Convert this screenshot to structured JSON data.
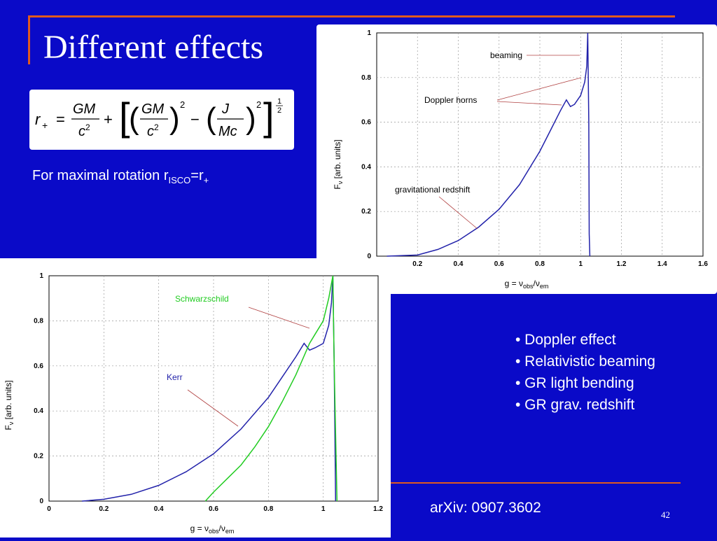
{
  "slide": {
    "title": "Different effects",
    "formula_text": "r+ = GM/c² + [ (GM/c²)² − (J/Mc)² ]^(1/2)",
    "note": {
      "prefix": "For maximal rotation r",
      "sub": "ISCO",
      "mid": "=r",
      "sup": "+"
    },
    "bullets": [
      "• Doppler effect",
      "• Relativistic beaming",
      "• GR light bending",
      "• GR grav. redshift"
    ],
    "reference": "arXiv: 0907.3602",
    "page_number": "42",
    "colors": {
      "background": "#0a0ac8",
      "rule": "#e05a1e",
      "kerr": "#2222aa",
      "schwarzschild": "#22cc22",
      "arrow": "#b04040"
    }
  },
  "chart_data": [
    {
      "type": "line",
      "xlim": [
        0,
        1.6
      ],
      "ylim": [
        0,
        1
      ],
      "xticks": [
        "0.2",
        "0.4",
        "0.6",
        "0.8",
        "1",
        "1.2",
        "1.4",
        "1.6"
      ],
      "yticks": [
        "0",
        "0.2",
        "0.4",
        "0.6",
        "0.8",
        "1"
      ],
      "xlabel": "g = ν_obs/ν_em",
      "ylabel": "F_ν [arb. units]",
      "grid": true,
      "series": [
        {
          "x": [
            0.05,
            0.2,
            0.3,
            0.4,
            0.5,
            0.6,
            0.7,
            0.8,
            0.85,
            0.9,
            0.93,
            0.95,
            0.97,
            1.0,
            1.02,
            1.03,
            1.035,
            1.04,
            1.042,
            1.045
          ],
          "y": [
            0,
            0.005,
            0.03,
            0.07,
            0.13,
            0.21,
            0.32,
            0.47,
            0.56,
            0.65,
            0.7,
            0.67,
            0.68,
            0.72,
            0.78,
            0.85,
            1.0,
            0.6,
            0.1,
            0
          ]
        }
      ],
      "annotations": [
        "beaming",
        "Doppler horns",
        "gravitational redshift"
      ]
    },
    {
      "type": "line",
      "xlim": [
        0,
        1.2
      ],
      "ylim": [
        0,
        1
      ],
      "xticks": [
        "0",
        "0.2",
        "0.4",
        "0.6",
        "0.8",
        "1",
        "1.2"
      ],
      "yticks": [
        "0",
        "0.2",
        "0.4",
        "0.6",
        "0.8",
        "1"
      ],
      "xlabel": "g = ν_obs/ν_em",
      "ylabel": "F_ν [arb. units]",
      "grid": true,
      "series": [
        {
          "name": "Kerr",
          "x": [
            0.12,
            0.2,
            0.3,
            0.4,
            0.5,
            0.6,
            0.7,
            0.8,
            0.85,
            0.9,
            0.93,
            0.95,
            0.97,
            1.0,
            1.02,
            1.03,
            1.035,
            1.04,
            1.045
          ],
          "y": [
            0,
            0.008,
            0.03,
            0.07,
            0.13,
            0.21,
            0.32,
            0.46,
            0.55,
            0.64,
            0.7,
            0.67,
            0.68,
            0.7,
            0.78,
            0.88,
            1.0,
            0.6,
            0
          ]
        },
        {
          "name": "Schwarzschild",
          "x": [
            0.57,
            0.6,
            0.65,
            0.7,
            0.75,
            0.8,
            0.85,
            0.9,
            0.95,
            0.97,
            1.0,
            1.02,
            1.035,
            1.04,
            1.05
          ],
          "y": [
            0,
            0.04,
            0.1,
            0.16,
            0.24,
            0.33,
            0.44,
            0.56,
            0.7,
            0.74,
            0.8,
            0.9,
            1.0,
            0.6,
            0
          ]
        }
      ],
      "annotations": [
        "Schwarzschild",
        "Kerr"
      ]
    }
  ]
}
